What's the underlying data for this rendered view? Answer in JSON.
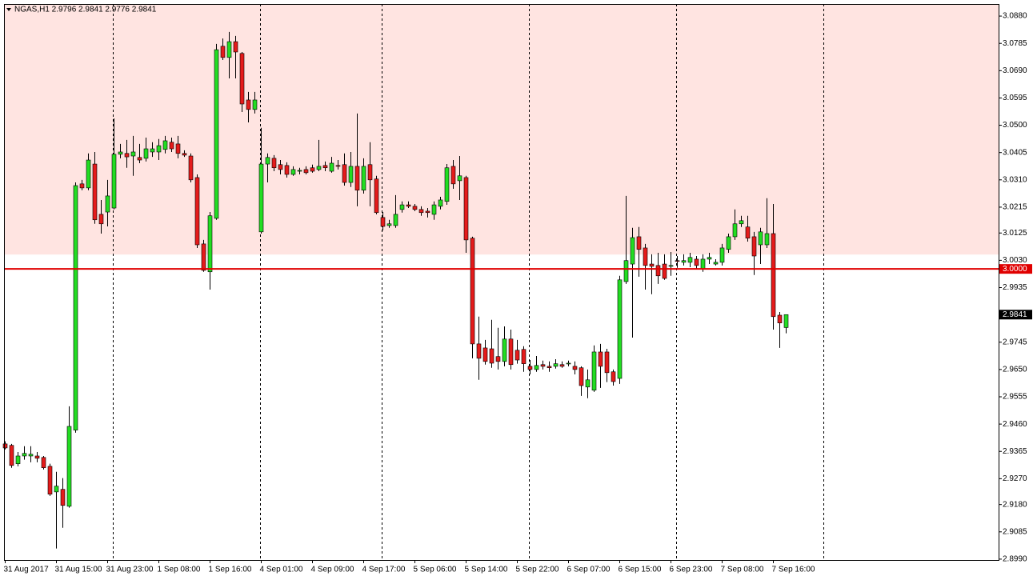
{
  "chart_data": {
    "type": "candlestick",
    "title": "NGAS,H1 2.9796 2.9841 2.9776 2.9841",
    "categories": [
      "31 Aug 2017",
      null,
      null,
      null,
      null,
      null,
      null,
      null,
      "31 Aug 15:00",
      null,
      null,
      null,
      null,
      null,
      null,
      null,
      "31 Aug 23:00",
      null,
      null,
      null,
      null,
      null,
      null,
      null,
      "1 Sep 08:00",
      null,
      null,
      null,
      null,
      null,
      null,
      null,
      "1 Sep 16:00",
      null,
      null,
      null,
      null,
      null,
      null,
      null,
      "4 Sep 01:00",
      null,
      null,
      null,
      null,
      null,
      null,
      null,
      "4 Sep 09:00",
      null,
      null,
      null,
      null,
      null,
      null,
      null,
      "4 Sep 17:00",
      null,
      null,
      null,
      null,
      null,
      null,
      null,
      "5 Sep 06:00",
      null,
      null,
      null,
      null,
      null,
      null,
      null,
      "5 Sep 14:00",
      null,
      null,
      null,
      null,
      null,
      null,
      null,
      "5 Sep 22:00",
      null,
      null,
      null,
      null,
      null,
      null,
      null,
      "6 Sep 07:00",
      null,
      null,
      null,
      null,
      null,
      null,
      null,
      "6 Sep 15:00",
      null,
      null,
      null,
      null,
      null,
      null,
      null,
      "6 Sep 23:00",
      null,
      null,
      null,
      null,
      null,
      null,
      null,
      "7 Sep 08:00",
      null,
      null,
      null,
      null,
      null,
      null,
      null,
      "7 Sep 16:00",
      null,
      null
    ],
    "open": [
      2.9391,
      2.9386,
      2.9322,
      2.9349,
      2.9349,
      2.9349,
      2.9344,
      2.9313,
      2.9224,
      2.9233,
      2.9174,
      2.9439,
      3.0296,
      3.0282,
      3.0365,
      3.019,
      3.0198,
      3.0212,
      3.0399,
      3.0402,
      3.0393,
      3.0388,
      3.0385,
      3.0407,
      3.0407,
      3.0416,
      3.0441,
      3.0435,
      3.0402,
      3.0393,
      3.0318,
      3.0087,
      2.999,
      3.0176,
      3.0775,
      3.0736,
      3.0791,
      3.075,
      3.0588,
      3.0555,
      3.0129,
      3.0365,
      3.0385,
      3.0363,
      3.036,
      3.0329,
      3.034,
      3.0346,
      3.0352,
      3.0346,
      3.036,
      3.034,
      3.036,
      3.0363,
      3.0301,
      3.0357,
      3.0274,
      3.0363,
      3.0313,
      3.0179,
      3.0151,
      3.0151,
      3.0207,
      3.0223,
      3.0218,
      3.0207,
      3.0201,
      3.019,
      3.0218,
      3.0235,
      3.0357,
      3.0307,
      3.0318,
      3.0107,
      2.9739,
      2.9725,
      2.9722,
      2.9695,
      2.9678,
      2.9756,
      2.9717,
      2.972,
      2.9661,
      2.965,
      2.9667,
      2.9661,
      2.9661,
      2.9667,
      2.967,
      2.9661,
      2.9656,
      2.9589,
      2.9578,
      2.9711,
      2.9711,
      2.9642,
      2.9619,
      2.9956,
      3.0017,
      3.0112,
      3.0073,
      3.0017,
      3.0012,
      3.0017,
      3.0009,
      3.0029,
      3.0023,
      3.0023,
      3.0034,
      3.0001,
      3.0034,
      3.0017,
      3.0023,
      3.0068,
      3.0112,
      3.0157,
      3.0146,
      3.0112,
      3.0084,
      3.0084,
      3.0123,
      2.9839,
      2.9796
    ],
    "high": [
      2.94,
      2.9391,
      2.9363,
      2.9383,
      2.9383,
      2.9363,
      2.9349,
      2.9322,
      2.9294,
      2.9272,
      2.9522,
      3.0301,
      3.031,
      3.0402,
      3.0407,
      3.024,
      3.031,
      3.0524,
      3.0435,
      3.0449,
      3.0463,
      3.0435,
      3.0457,
      3.0441,
      3.0452,
      3.0463,
      3.0457,
      3.0463,
      3.0413,
      3.0402,
      3.0329,
      3.0101,
      3.0198,
      3.0783,
      3.0802,
      3.0825,
      3.0811,
      3.0755,
      3.0616,
      3.0616,
      3.0491,
      3.0402,
      3.0396,
      3.0379,
      3.0371,
      3.0357,
      3.0352,
      3.0357,
      3.0363,
      3.0449,
      3.0374,
      3.039,
      3.0379,
      3.0402,
      3.0407,
      3.0541,
      3.0385,
      3.0441,
      3.0324,
      3.0198,
      3.0171,
      3.0257,
      3.0235,
      3.0235,
      3.0226,
      3.0218,
      3.0212,
      3.0235,
      3.0251,
      3.0365,
      3.0379,
      3.0393,
      3.0324,
      3.0112,
      2.9834,
      2.9753,
      2.9823,
      2.9795,
      2.98,
      2.9789,
      2.9753,
      2.9731,
      2.9683,
      2.9697,
      2.9681,
      2.9678,
      2.9686,
      2.9678,
      2.9681,
      2.9678,
      2.9661,
      2.965,
      2.9734,
      2.9739,
      2.9722,
      2.965,
      2.9976,
      3.0254,
      3.0143,
      3.0146,
      3.0087,
      3.0051,
      3.0056,
      3.0051,
      3.0059,
      3.0045,
      3.0051,
      3.0056,
      3.0045,
      3.0051,
      3.0056,
      3.0034,
      3.0087,
      3.0123,
      3.0207,
      3.0185,
      3.0185,
      3.0129,
      3.0143,
      3.0246,
      3.0226,
      2.985,
      2.9841
    ],
    "low": [
      2.9372,
      2.9308,
      2.9313,
      2.9336,
      2.9327,
      2.9327,
      2.9302,
      2.921,
      2.9027,
      2.9099,
      2.9169,
      2.943,
      3.0274,
      3.0274,
      3.0157,
      3.0123,
      3.0148,
      3.0207,
      3.0385,
      3.0352,
      3.0324,
      3.0368,
      3.0374,
      3.039,
      3.0379,
      3.0402,
      3.0407,
      3.0385,
      3.039,
      3.0301,
      3.0073,
      2.999,
      2.9928,
      3.0171,
      3.0727,
      3.0663,
      3.0663,
      3.0546,
      3.051,
      3.0541,
      3.0123,
      3.0301,
      3.034,
      3.0329,
      3.0318,
      3.0324,
      3.0329,
      3.0329,
      3.0335,
      3.034,
      3.034,
      3.0335,
      3.0346,
      3.029,
      3.0285,
      3.0218,
      3.0262,
      3.0218,
      3.019,
      3.0134,
      3.0143,
      3.0143,
      3.0196,
      3.0212,
      3.0201,
      3.0185,
      3.0179,
      3.0171,
      3.0207,
      3.0223,
      3.0279,
      3.024,
      3.0056,
      2.9689,
      2.9614,
      2.9667,
      2.9656,
      2.965,
      2.9661,
      2.965,
      2.967,
      2.9642,
      2.9633,
      2.9642,
      2.965,
      2.9642,
      2.9653,
      2.9656,
      2.9661,
      2.9633,
      2.9558,
      2.955,
      2.9572,
      2.9586,
      2.9606,
      2.9594,
      2.96,
      2.9948,
      2.9761,
      2.9973,
      2.9928,
      2.9912,
      2.9948,
      2.9962,
      2.9976,
      3.0004,
      3.0012,
      3.0006,
      3.0001,
      2.999,
      3.0017,
      3.0012,
      3.0012,
      3.0056,
      3.0101,
      3.0146,
      3.0095,
      2.9979,
      3.0017,
      3.0073,
      2.9789,
      2.9725,
      2.9776
    ],
    "close": [
      2.9377,
      2.9316,
      2.9349,
      2.9358,
      2.9355,
      2.9341,
      2.9308,
      2.9216,
      2.9244,
      2.9177,
      2.9452,
      3.029,
      3.0282,
      3.0379,
      3.0171,
      3.0157,
      3.0254,
      3.0399,
      3.0407,
      3.039,
      3.0407,
      3.0379,
      3.0418,
      3.0418,
      3.0429,
      3.0446,
      3.0418,
      3.0402,
      3.0396,
      3.031,
      3.0084,
      2.9995,
      3.0185,
      3.0763,
      3.0736,
      3.0791,
      3.0755,
      3.0574,
      3.0555,
      3.0588,
      3.0365,
      3.0388,
      3.0352,
      3.0346,
      3.0329,
      3.0346,
      3.0343,
      3.0335,
      3.034,
      3.0357,
      3.0352,
      3.0368,
      3.0357,
      3.0301,
      3.0357,
      3.0274,
      3.0357,
      3.031,
      3.0196,
      3.0148,
      3.0157,
      3.019,
      3.0223,
      3.0218,
      3.0207,
      3.0196,
      3.0196,
      3.0223,
      3.024,
      3.0352,
      3.0296,
      3.0324,
      3.0101,
      2.9739,
      2.9689,
      2.9678,
      2.9672,
      2.9678,
      2.9756,
      2.9667,
      2.9683,
      2.967,
      2.965,
      2.9664,
      2.9661,
      2.9656,
      2.967,
      2.9661,
      2.9672,
      2.965,
      2.9594,
      2.9614,
      2.9711,
      2.9661,
      2.9639,
      2.9608,
      2.9962,
      3.0029,
      3.0109,
      3.0068,
      3.0012,
      3.0009,
      2.9976,
      2.9967,
      3.0012,
      3.0026,
      3.0029,
      3.004,
      3.0012,
      3.0034,
      3.004,
      3.0023,
      3.0073,
      3.0112,
      3.0157,
      3.0168,
      3.0107,
      3.0045,
      3.0129,
      3.0123,
      2.9834,
      2.9812,
      2.9841
    ],
    "up_color": "#22dd22",
    "down_color": "#e41b1b",
    "ylim": [
      2.8987,
      3.0922
    ],
    "yticks": [
      {
        "value": 3.088,
        "label": "3.0880"
      },
      3.0785,
      {
        "value": 3.069,
        "label": "3.0690"
      },
      3.0595,
      {
        "value": 3.05,
        "label": "3.0500"
      },
      3.0405,
      {
        "value": 3.031,
        "label": "3.0310"
      },
      3.0215,
      3.0125,
      {
        "value": 3.003,
        "label": "3.0030"
      },
      2.9935,
      2.9745,
      {
        "value": 2.965,
        "label": "2.9650"
      },
      2.9555,
      {
        "value": 2.946,
        "label": "2.9460"
      },
      2.9365,
      {
        "value": 2.927,
        "label": "2.9270"
      },
      {
        "value": 2.918,
        "label": "2.9180"
      },
      2.9085,
      {
        "value": 2.899,
        "label": "2.8990"
      }
    ],
    "grid": false,
    "zones": [
      {
        "from": 3.005,
        "to": 3.0922,
        "color": "#ffe4e1"
      }
    ],
    "hlines": [
      {
        "value": 3.0,
        "label": "3.0000",
        "color": "#e00000"
      }
    ],
    "last_price": {
      "value": 2.9841,
      "label": "2.9841"
    }
  }
}
